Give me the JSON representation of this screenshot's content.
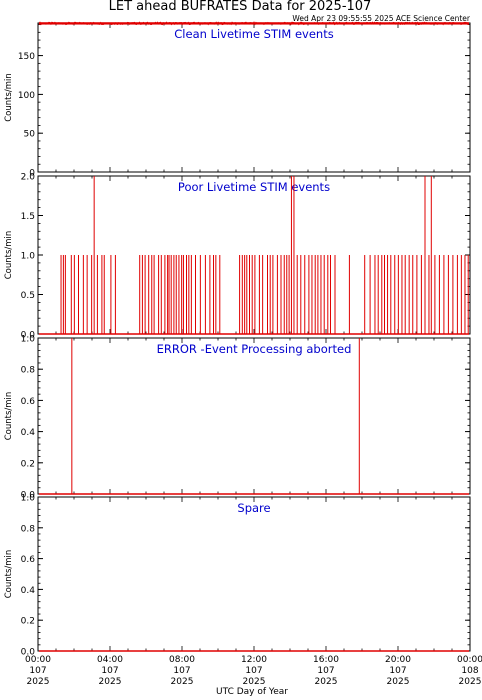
{
  "title": "LET ahead BUFRATES Data for 2025-107",
  "timestamp": "Wed Apr 23 09:55:55 2025 ACE Science Center",
  "x_axis_label": "UTC Day of Year",
  "colors": {
    "data": "#e00000",
    "label": "#0000cc",
    "axes": "#000000"
  },
  "chart_data": [
    {
      "type": "line",
      "title": "Clean Livetime STIM events",
      "ylabel": "Counts/min",
      "xlim": [
        0,
        24
      ],
      "ylim": [
        0,
        192
      ],
      "yticks": [
        0,
        50,
        100,
        150
      ],
      "xticks": [
        "00:00 107 2025",
        "04:00 107 2025",
        "08:00 107 2025",
        "12:00 107 2025",
        "16:00 107 2025",
        "20:00 107 2025",
        "00:00 108 2025"
      ],
      "series": [
        {
          "band": [
            190,
            193
          ]
        }
      ]
    },
    {
      "type": "line",
      "title": "Poor Livetime STIM events",
      "ylabel": "Counts/min",
      "xlim": [
        0,
        24
      ],
      "ylim": [
        0,
        2
      ],
      "yticks": [
        0.0,
        0.5,
        1.0,
        1.5,
        2.0
      ],
      "xticks": [
        "00:00 107 2025",
        "04:00 107 2025",
        "08:00 107 2025",
        "12:00 107 2025",
        "16:00 107 2025",
        "20:00 107 2025",
        "00:00 108 2025"
      ],
      "series": [
        {
          "spikes": [
            [
              1.28,
              1
            ],
            [
              1.41,
              1
            ],
            [
              1.52,
              1
            ],
            [
              1.85,
              1
            ],
            [
              2.02,
              1
            ],
            [
              2.25,
              1
            ],
            [
              2.52,
              1
            ],
            [
              2.73,
              1
            ],
            [
              2.98,
              1
            ],
            [
              3.12,
              2
            ],
            [
              3.3,
              1
            ],
            [
              3.55,
              1
            ],
            [
              3.68,
              1
            ],
            [
              4.05,
              1
            ],
            [
              4.3,
              1
            ],
            [
              5.65,
              1
            ],
            [
              5.8,
              1
            ],
            [
              5.95,
              1
            ],
            [
              6.15,
              1
            ],
            [
              6.32,
              1
            ],
            [
              6.45,
              1
            ],
            [
              6.7,
              1
            ],
            [
              6.85,
              1
            ],
            [
              7.05,
              1
            ],
            [
              7.2,
              1
            ],
            [
              7.28,
              1
            ],
            [
              7.4,
              1
            ],
            [
              7.55,
              1
            ],
            [
              7.68,
              1
            ],
            [
              7.83,
              1
            ],
            [
              7.98,
              1
            ],
            [
              8.08,
              1
            ],
            [
              8.25,
              1
            ],
            [
              8.38,
              1
            ],
            [
              8.52,
              1
            ],
            [
              8.75,
              1
            ],
            [
              9.02,
              1
            ],
            [
              9.3,
              1
            ],
            [
              9.55,
              1
            ],
            [
              9.75,
              1
            ],
            [
              9.88,
              1
            ],
            [
              10.1,
              1
            ],
            [
              11.2,
              1
            ],
            [
              11.35,
              1
            ],
            [
              11.48,
              1
            ],
            [
              11.6,
              1
            ],
            [
              11.75,
              1
            ],
            [
              11.9,
              1
            ],
            [
              12.05,
              1
            ],
            [
              12.3,
              1
            ],
            [
              12.48,
              1
            ],
            [
              12.75,
              1
            ],
            [
              12.9,
              1
            ],
            [
              13.05,
              1
            ],
            [
              13.3,
              1
            ],
            [
              13.5,
              1
            ],
            [
              13.68,
              1
            ],
            [
              13.82,
              1
            ],
            [
              13.95,
              1
            ],
            [
              14.08,
              2
            ],
            [
              14.22,
              2
            ],
            [
              14.4,
              1
            ],
            [
              14.6,
              1
            ],
            [
              14.82,
              1
            ],
            [
              15.05,
              1
            ],
            [
              15.22,
              1
            ],
            [
              15.4,
              1
            ],
            [
              15.55,
              1
            ],
            [
              15.72,
              1
            ],
            [
              15.9,
              1
            ],
            [
              16.1,
              1
            ],
            [
              16.25,
              1
            ],
            [
              16.5,
              1
            ],
            [
              17.3,
              1
            ],
            [
              18.15,
              1
            ],
            [
              18.45,
              1
            ],
            [
              18.72,
              1
            ],
            [
              18.9,
              1
            ],
            [
              19.1,
              1
            ],
            [
              19.25,
              1
            ],
            [
              19.42,
              1
            ],
            [
              19.6,
              1
            ],
            [
              19.82,
              1
            ],
            [
              20.02,
              1
            ],
            [
              20.22,
              1
            ],
            [
              20.4,
              1
            ],
            [
              20.62,
              1
            ],
            [
              20.82,
              1
            ],
            [
              21.05,
              1
            ],
            [
              21.3,
              1
            ],
            [
              21.5,
              2
            ],
            [
              21.72,
              1
            ],
            [
              21.85,
              2
            ],
            [
              22.05,
              1
            ],
            [
              22.3,
              1
            ],
            [
              22.55,
              1
            ],
            [
              22.8,
              1
            ],
            [
              23.05,
              1
            ],
            [
              23.3,
              1
            ],
            [
              23.52,
              1
            ],
            [
              23.72,
              1
            ],
            [
              23.9,
              1
            ]
          ]
        }
      ]
    },
    {
      "type": "line",
      "title": "ERROR -Event Processing aborted",
      "ylabel": "Counts/min",
      "xlim": [
        0,
        24
      ],
      "ylim": [
        0,
        1
      ],
      "yticks": [
        0.0,
        0.2,
        0.4,
        0.6,
        0.8,
        1.0
      ],
      "xticks": [
        "00:00 107 2025",
        "04:00 107 2025",
        "08:00 107 2025",
        "12:00 107 2025",
        "16:00 107 2025",
        "20:00 107 2025",
        "00:00 108 2025"
      ],
      "series": [
        {
          "spikes": [
            [
              1.88,
              1
            ],
            [
              17.85,
              1
            ]
          ]
        }
      ]
    },
    {
      "type": "line",
      "title": "Spare",
      "ylabel": "Counts/min",
      "xlim": [
        0,
        24
      ],
      "ylim": [
        0,
        1
      ],
      "yticks": [
        0.0,
        0.2,
        0.4,
        0.6,
        0.8,
        1.0
      ],
      "xticks": [
        "00:00 107 2025",
        "04:00 107 2025",
        "08:00 107 2025",
        "12:00 107 2025",
        "16:00 107 2025",
        "20:00 107 2025",
        "00:00 108 2025"
      ],
      "series": [
        {
          "spikes": []
        }
      ]
    }
  ]
}
